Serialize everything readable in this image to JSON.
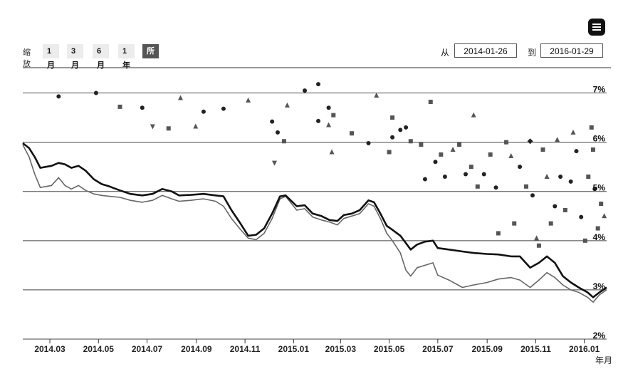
{
  "toolbar": {
    "zoom_label": "缩放",
    "zoom_buttons": [
      "1月",
      "3月",
      "6月",
      "1年",
      "所有"
    ],
    "active_zoom": "所有",
    "from_label": "从",
    "from_value": "2014-01-26",
    "to_label": "到",
    "to_value": "2016-01-29"
  },
  "menu_icon": "hamburger-menu-icon",
  "chart_data": {
    "type": "line",
    "xlabel": "年月",
    "ylabel": "",
    "x_ticks": [
      "2014.03",
      "2014.05",
      "2014.07",
      "2014.09",
      "2014.11",
      "2015.01",
      "2015.03",
      "2015.05",
      "2015.07",
      "2015.09",
      "2015.11",
      "2016.01"
    ],
    "y_ticks": [
      "2%",
      "3%",
      "4%",
      "5%",
      "6%",
      "7%"
    ],
    "ylim": [
      2,
      7.5
    ],
    "xlim": [
      "2014-01-26",
      "2016-01-29"
    ],
    "grid": true,
    "series": [
      {
        "style": "thick-black-line",
        "points": [
          [
            "2014-01-26",
            5.98
          ],
          [
            "2014-02-03",
            5.88
          ],
          [
            "2014-02-10",
            5.7
          ],
          [
            "2014-02-17",
            5.48
          ],
          [
            "2014-02-24",
            5.5
          ],
          [
            "2014-03-03",
            5.52
          ],
          [
            "2014-03-12",
            5.58
          ],
          [
            "2014-03-20",
            5.55
          ],
          [
            "2014-03-28",
            5.48
          ],
          [
            "2014-04-06",
            5.52
          ],
          [
            "2014-04-15",
            5.42
          ],
          [
            "2014-04-25",
            5.25
          ],
          [
            "2014-05-05",
            5.15
          ],
          [
            "2014-05-15",
            5.1
          ],
          [
            "2014-05-28",
            5.02
          ],
          [
            "2014-06-10",
            4.95
          ],
          [
            "2014-06-25",
            4.92
          ],
          [
            "2014-07-08",
            4.95
          ],
          [
            "2014-07-20",
            5.05
          ],
          [
            "2014-08-01",
            5.0
          ],
          [
            "2014-08-10",
            4.92
          ],
          [
            "2014-08-25",
            4.93
          ],
          [
            "2014-09-10",
            4.95
          ],
          [
            "2014-09-25",
            4.92
          ],
          [
            "2014-10-05",
            4.9
          ],
          [
            "2014-10-15",
            4.62
          ],
          [
            "2014-10-25",
            4.38
          ],
          [
            "2014-11-05",
            4.1
          ],
          [
            "2014-11-15",
            4.12
          ],
          [
            "2014-11-25",
            4.25
          ],
          [
            "2014-12-05",
            4.55
          ],
          [
            "2014-12-15",
            4.9
          ],
          [
            "2014-12-22",
            4.92
          ],
          [
            "2015-01-05",
            4.7
          ],
          [
            "2015-01-15",
            4.72
          ],
          [
            "2015-01-25",
            4.55
          ],
          [
            "2015-02-05",
            4.5
          ],
          [
            "2015-02-15",
            4.42
          ],
          [
            "2015-02-25",
            4.4
          ],
          [
            "2015-03-05",
            4.52
          ],
          [
            "2015-03-15",
            4.55
          ],
          [
            "2015-03-25",
            4.62
          ],
          [
            "2015-04-05",
            4.82
          ],
          [
            "2015-04-12",
            4.78
          ],
          [
            "2015-04-20",
            4.55
          ],
          [
            "2015-04-28",
            4.3
          ],
          [
            "2015-05-05",
            4.22
          ],
          [
            "2015-05-15",
            4.1
          ],
          [
            "2015-05-22",
            3.95
          ],
          [
            "2015-05-28",
            3.82
          ],
          [
            "2015-06-05",
            3.92
          ],
          [
            "2015-06-15",
            3.98
          ],
          [
            "2015-06-25",
            4.0
          ],
          [
            "2015-07-01",
            3.85
          ],
          [
            "2015-07-15",
            3.82
          ],
          [
            "2015-08-01",
            3.78
          ],
          [
            "2015-08-15",
            3.75
          ],
          [
            "2015-09-01",
            3.73
          ],
          [
            "2015-09-15",
            3.72
          ],
          [
            "2015-10-01",
            3.68
          ],
          [
            "2015-10-12",
            3.68
          ],
          [
            "2015-10-25",
            3.45
          ],
          [
            "2015-11-05",
            3.55
          ],
          [
            "2015-11-15",
            3.68
          ],
          [
            "2015-11-25",
            3.55
          ],
          [
            "2015-12-05",
            3.28
          ],
          [
            "2015-12-15",
            3.15
          ],
          [
            "2015-12-25",
            3.05
          ],
          [
            "2016-01-05",
            2.95
          ],
          [
            "2016-01-12",
            2.85
          ],
          [
            "2016-01-20",
            2.95
          ],
          [
            "2016-01-29",
            3.05
          ]
        ]
      },
      {
        "style": "gray-line",
        "points": [
          [
            "2014-01-26",
            5.95
          ],
          [
            "2014-02-03",
            5.7
          ],
          [
            "2014-02-10",
            5.35
          ],
          [
            "2014-02-17",
            5.08
          ],
          [
            "2014-02-24",
            5.1
          ],
          [
            "2014-03-03",
            5.12
          ],
          [
            "2014-03-12",
            5.28
          ],
          [
            "2014-03-20",
            5.12
          ],
          [
            "2014-03-28",
            5.05
          ],
          [
            "2014-04-06",
            5.12
          ],
          [
            "2014-04-15",
            5.02
          ],
          [
            "2014-04-25",
            4.95
          ],
          [
            "2014-05-05",
            4.92
          ],
          [
            "2014-05-15",
            4.9
          ],
          [
            "2014-05-28",
            4.88
          ],
          [
            "2014-06-10",
            4.82
          ],
          [
            "2014-06-25",
            4.78
          ],
          [
            "2014-07-08",
            4.82
          ],
          [
            "2014-07-20",
            4.92
          ],
          [
            "2014-08-01",
            4.85
          ],
          [
            "2014-08-10",
            4.8
          ],
          [
            "2014-08-25",
            4.82
          ],
          [
            "2014-09-10",
            4.85
          ],
          [
            "2014-09-25",
            4.8
          ],
          [
            "2014-10-05",
            4.7
          ],
          [
            "2014-10-15",
            4.45
          ],
          [
            "2014-10-25",
            4.25
          ],
          [
            "2014-11-05",
            4.05
          ],
          [
            "2014-11-15",
            4.02
          ],
          [
            "2014-11-25",
            4.15
          ],
          [
            "2014-12-05",
            4.45
          ],
          [
            "2014-12-15",
            4.85
          ],
          [
            "2014-12-22",
            4.9
          ],
          [
            "2015-01-05",
            4.62
          ],
          [
            "2015-01-15",
            4.65
          ],
          [
            "2015-01-25",
            4.48
          ],
          [
            "2015-02-05",
            4.42
          ],
          [
            "2015-02-15",
            4.38
          ],
          [
            "2015-02-25",
            4.32
          ],
          [
            "2015-03-05",
            4.45
          ],
          [
            "2015-03-15",
            4.5
          ],
          [
            "2015-03-25",
            4.55
          ],
          [
            "2015-04-05",
            4.75
          ],
          [
            "2015-04-12",
            4.7
          ],
          [
            "2015-04-20",
            4.45
          ],
          [
            "2015-04-28",
            4.15
          ],
          [
            "2015-05-05",
            4.0
          ],
          [
            "2015-05-15",
            3.75
          ],
          [
            "2015-05-22",
            3.4
          ],
          [
            "2015-05-28",
            3.28
          ],
          [
            "2015-06-05",
            3.45
          ],
          [
            "2015-06-15",
            3.5
          ],
          [
            "2015-06-25",
            3.55
          ],
          [
            "2015-07-01",
            3.3
          ],
          [
            "2015-07-15",
            3.2
          ],
          [
            "2015-08-01",
            3.05
          ],
          [
            "2015-08-15",
            3.1
          ],
          [
            "2015-09-01",
            3.15
          ],
          [
            "2015-09-15",
            3.22
          ],
          [
            "2015-10-01",
            3.25
          ],
          [
            "2015-10-12",
            3.2
          ],
          [
            "2015-10-25",
            3.05
          ],
          [
            "2015-11-05",
            3.2
          ],
          [
            "2015-11-15",
            3.35
          ],
          [
            "2015-11-25",
            3.25
          ],
          [
            "2015-12-05",
            3.1
          ],
          [
            "2015-12-15",
            3.0
          ],
          [
            "2015-12-25",
            2.95
          ],
          [
            "2016-01-05",
            2.85
          ],
          [
            "2016-01-12",
            2.75
          ],
          [
            "2016-01-20",
            2.9
          ],
          [
            "2016-01-29",
            3.0
          ]
        ]
      }
    ],
    "scatter": [
      {
        "d": "2014-03-12",
        "v": 6.93,
        "s": "circle"
      },
      {
        "d": "2014-04-28",
        "v": 7.0,
        "s": "circle"
      },
      {
        "d": "2014-05-28",
        "v": 6.72,
        "s": "square"
      },
      {
        "d": "2014-06-25",
        "v": 6.7,
        "s": "circle"
      },
      {
        "d": "2014-07-08",
        "v": 6.32,
        "s": "triangle-down"
      },
      {
        "d": "2014-07-28",
        "v": 6.28,
        "s": "square"
      },
      {
        "d": "2014-08-12",
        "v": 6.9,
        "s": "triangle"
      },
      {
        "d": "2014-08-31",
        "v": 6.32,
        "s": "triangle"
      },
      {
        "d": "2014-09-10",
        "v": 6.62,
        "s": "circle"
      },
      {
        "d": "2014-10-05",
        "v": 6.68,
        "s": "circle"
      },
      {
        "d": "2014-11-05",
        "v": 6.85,
        "s": "triangle"
      },
      {
        "d": "2014-12-05",
        "v": 6.42,
        "s": "circle"
      },
      {
        "d": "2014-12-12",
        "v": 6.2,
        "s": "circle"
      },
      {
        "d": "2014-12-20",
        "v": 6.02,
        "s": "square"
      },
      {
        "d": "2014-12-24",
        "v": 6.75,
        "s": "triangle"
      },
      {
        "d": "2014-12-08",
        "v": 5.58,
        "s": "triangle-down"
      },
      {
        "d": "2015-01-15",
        "v": 7.05,
        "s": "circle"
      },
      {
        "d": "2015-02-01",
        "v": 7.18,
        "s": "circle"
      },
      {
        "d": "2015-02-01",
        "v": 6.43,
        "s": "circle"
      },
      {
        "d": "2015-02-14",
        "v": 6.7,
        "s": "circle"
      },
      {
        "d": "2015-02-14",
        "v": 6.35,
        "s": "triangle"
      },
      {
        "d": "2015-02-20",
        "v": 6.55,
        "s": "square"
      },
      {
        "d": "2015-02-18",
        "v": 5.8,
        "s": "triangle"
      },
      {
        "d": "2015-03-15",
        "v": 6.18,
        "s": "square"
      },
      {
        "d": "2015-04-05",
        "v": 5.98,
        "s": "circle"
      },
      {
        "d": "2015-04-15",
        "v": 6.95,
        "s": "triangle"
      },
      {
        "d": "2015-05-01",
        "v": 5.8,
        "s": "square"
      },
      {
        "d": "2015-05-05",
        "v": 6.1,
        "s": "circle"
      },
      {
        "d": "2015-05-05",
        "v": 6.5,
        "s": "square"
      },
      {
        "d": "2015-05-15",
        "v": 6.25,
        "s": "circle"
      },
      {
        "d": "2015-05-22",
        "v": 6.3,
        "s": "circle"
      },
      {
        "d": "2015-05-28",
        "v": 6.02,
        "s": "square"
      },
      {
        "d": "2015-06-10",
        "v": 5.95,
        "s": "square"
      },
      {
        "d": "2015-06-22",
        "v": 6.82,
        "s": "square"
      },
      {
        "d": "2015-06-15",
        "v": 5.25,
        "s": "circle"
      },
      {
        "d": "2015-06-28",
        "v": 5.6,
        "s": "circle"
      },
      {
        "d": "2015-07-05",
        "v": 5.75,
        "s": "square"
      },
      {
        "d": "2015-07-10",
        "v": 5.3,
        "s": "circle"
      },
      {
        "d": "2015-07-20",
        "v": 5.85,
        "s": "triangle"
      },
      {
        "d": "2015-07-28",
        "v": 5.95,
        "s": "square"
      },
      {
        "d": "2015-08-05",
        "v": 5.35,
        "s": "circle"
      },
      {
        "d": "2015-08-12",
        "v": 5.5,
        "s": "square"
      },
      {
        "d": "2015-08-15",
        "v": 6.55,
        "s": "triangle"
      },
      {
        "d": "2015-08-20",
        "v": 5.1,
        "s": "square"
      },
      {
        "d": "2015-08-28",
        "v": 5.35,
        "s": "circle"
      },
      {
        "d": "2015-09-05",
        "v": 5.75,
        "s": "square"
      },
      {
        "d": "2015-09-12",
        "v": 5.08,
        "s": "circle"
      },
      {
        "d": "2015-09-15",
        "v": 4.15,
        "s": "square"
      },
      {
        "d": "2015-09-25",
        "v": 6.0,
        "s": "square"
      },
      {
        "d": "2015-10-01",
        "v": 5.72,
        "s": "triangle"
      },
      {
        "d": "2015-10-05",
        "v": 4.35,
        "s": "square"
      },
      {
        "d": "2015-10-12",
        "v": 5.5,
        "s": "circle"
      },
      {
        "d": "2015-10-20",
        "v": 5.1,
        "s": "square"
      },
      {
        "d": "2015-10-25",
        "v": 6.02,
        "s": "diamond"
      },
      {
        "d": "2015-10-28",
        "v": 4.92,
        "s": "circle"
      },
      {
        "d": "2015-11-02",
        "v": 4.05,
        "s": "triangle"
      },
      {
        "d": "2015-11-05",
        "v": 3.9,
        "s": "square"
      },
      {
        "d": "2015-11-10",
        "v": 5.85,
        "s": "square"
      },
      {
        "d": "2015-11-15",
        "v": 5.3,
        "s": "triangle"
      },
      {
        "d": "2015-11-20",
        "v": 4.35,
        "s": "square"
      },
      {
        "d": "2015-11-25",
        "v": 4.7,
        "s": "circle"
      },
      {
        "d": "2015-11-28",
        "v": 6.05,
        "s": "triangle"
      },
      {
        "d": "2015-12-02",
        "v": 5.3,
        "s": "circle"
      },
      {
        "d": "2015-12-08",
        "v": 4.62,
        "s": "square"
      },
      {
        "d": "2015-12-15",
        "v": 5.2,
        "s": "circle"
      },
      {
        "d": "2015-12-18",
        "v": 6.2,
        "s": "triangle"
      },
      {
        "d": "2015-12-22",
        "v": 5.82,
        "s": "circle"
      },
      {
        "d": "2015-12-28",
        "v": 4.48,
        "s": "circle"
      },
      {
        "d": "2016-01-02",
        "v": 4.0,
        "s": "square"
      },
      {
        "d": "2016-01-06",
        "v": 5.3,
        "s": "square"
      },
      {
        "d": "2016-01-10",
        "v": 6.3,
        "s": "square"
      },
      {
        "d": "2016-01-14",
        "v": 5.05,
        "s": "circle"
      },
      {
        "d": "2016-01-18",
        "v": 4.25,
        "s": "square"
      },
      {
        "d": "2016-01-22",
        "v": 4.75,
        "s": "square"
      },
      {
        "d": "2016-01-26",
        "v": 4.5,
        "s": "triangle"
      },
      {
        "d": "2016-01-12",
        "v": 5.85,
        "s": "square"
      }
    ]
  },
  "colors": {
    "thick_line": "#111111",
    "gray_line": "#666666",
    "grid": "#444444",
    "marker_dark": "#222222",
    "marker_mid": "#555555"
  }
}
